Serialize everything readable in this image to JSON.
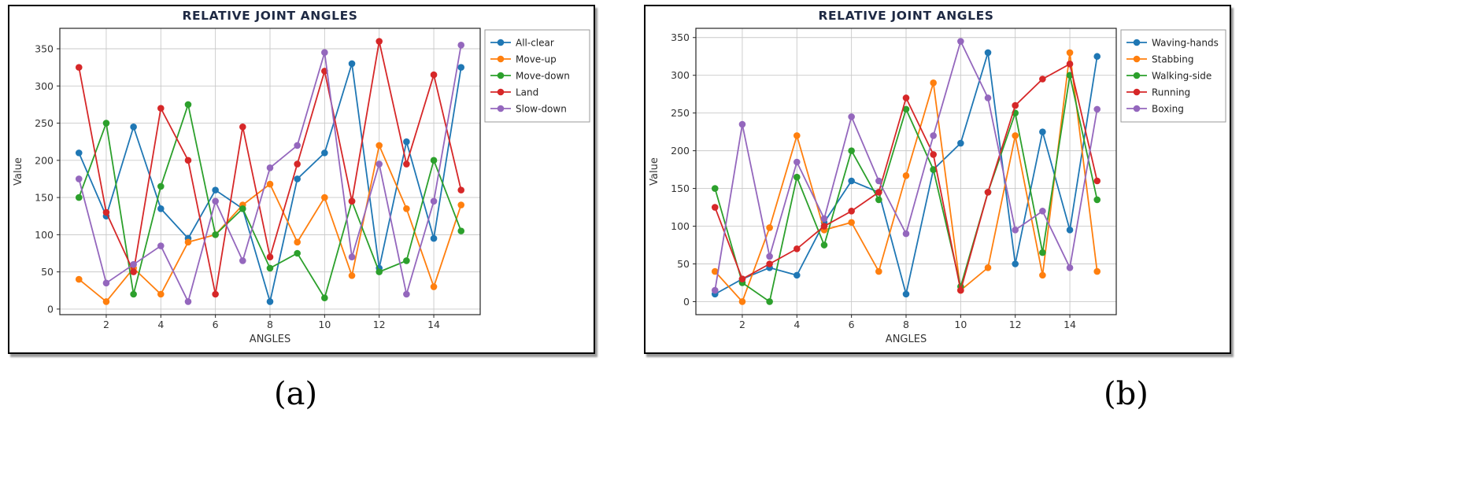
{
  "figure": {
    "captions": {
      "a": "(a)",
      "b": "(b)"
    }
  },
  "colors": {
    "blue": "#1f77b4",
    "orange": "#ff7f0e",
    "green": "#2ca02c",
    "red": "#d62728",
    "purple": "#9467bd",
    "grid": "#c9c9c9",
    "spine": "#262626",
    "title": "#1f2a44",
    "tick_text": "#333333",
    "legend_border": "#999999"
  },
  "chart_data": [
    {
      "type": "line",
      "title": "RELATIVE JOINT ANGLES",
      "xlabel": "ANGLES",
      "ylabel": "Value",
      "grid": true,
      "legend_position": "outside-top-right",
      "x": [
        1,
        2,
        3,
        4,
        5,
        6,
        7,
        8,
        9,
        10,
        11,
        12,
        13,
        14,
        15
      ],
      "xticks": [
        2,
        4,
        6,
        8,
        10,
        12,
        14
      ],
      "yticks": [
        0,
        50,
        100,
        150,
        200,
        250,
        300,
        350
      ],
      "series": [
        {
          "name": "All-clear",
          "color": "#1f77b4",
          "values": [
            210,
            125,
            245,
            135,
            95,
            160,
            135,
            10,
            175,
            210,
            330,
            55,
            225,
            95,
            325
          ]
        },
        {
          "name": "Move-up",
          "color": "#ff7f0e",
          "values": [
            40,
            10,
            55,
            20,
            90,
            100,
            140,
            168,
            90,
            150,
            45,
            220,
            135,
            30,
            140
          ]
        },
        {
          "name": "Move-down",
          "color": "#2ca02c",
          "values": [
            150,
            250,
            20,
            165,
            275,
            100,
            135,
            55,
            75,
            15,
            145,
            50,
            65,
            200,
            105
          ]
        },
        {
          "name": "Land",
          "color": "#d62728",
          "values": [
            325,
            130,
            50,
            270,
            200,
            20,
            245,
            70,
            195,
            320,
            145,
            360,
            195,
            315,
            160
          ]
        },
        {
          "name": "Slow-down",
          "color": "#9467bd",
          "values": [
            175,
            35,
            60,
            85,
            10,
            145,
            65,
            190,
            220,
            345,
            70,
            195,
            20,
            145,
            355
          ]
        }
      ]
    },
    {
      "type": "line",
      "title": "RELATIVE JOINT ANGLES",
      "xlabel": "ANGLES",
      "ylabel": "Value",
      "grid": true,
      "legend_position": "outside-top-right",
      "x": [
        1,
        2,
        3,
        4,
        5,
        6,
        7,
        8,
        9,
        10,
        11,
        12,
        13,
        14,
        15
      ],
      "xticks": [
        2,
        4,
        6,
        8,
        10,
        12,
        14
      ],
      "yticks": [
        0,
        50,
        100,
        150,
        200,
        250,
        300,
        350
      ],
      "series": [
        {
          "name": "Waving-hands",
          "color": "#1f77b4",
          "values": [
            10,
            30,
            45,
            35,
            105,
            160,
            145,
            10,
            175,
            210,
            330,
            50,
            225,
            95,
            325
          ]
        },
        {
          "name": "Stabbing",
          "color": "#ff7f0e",
          "values": [
            40,
            0,
            98,
            220,
            95,
            105,
            40,
            167,
            290,
            15,
            45,
            220,
            35,
            330,
            40
          ]
        },
        {
          "name": "Walking-side",
          "color": "#2ca02c",
          "values": [
            150,
            25,
            0,
            165,
            75,
            200,
            135,
            255,
            175,
            20,
            145,
            250,
            65,
            300,
            135
          ]
        },
        {
          "name": "Running",
          "color": "#d62728",
          "values": [
            125,
            30,
            50,
            70,
            100,
            120,
            145,
            270,
            195,
            15,
            145,
            260,
            295,
            315,
            160
          ]
        },
        {
          "name": "Boxing",
          "color": "#9467bd",
          "values": [
            15,
            235,
            60,
            185,
            110,
            245,
            160,
            90,
            220,
            345,
            270,
            95,
            120,
            45,
            255
          ]
        }
      ]
    }
  ]
}
